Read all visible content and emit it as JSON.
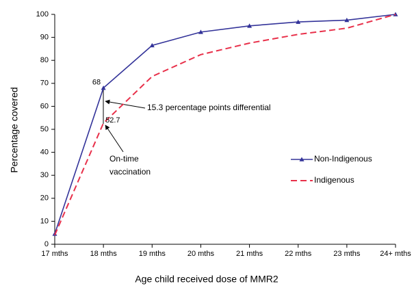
{
  "chart_data": {
    "type": "line",
    "x_label": "Age child received dose of MMR2",
    "y_label": "Percentage covered",
    "categories": [
      "17 mths",
      "18 mths",
      "19 mths",
      "20 mths",
      "21 mths",
      "22 mths",
      "23 mths",
      "24+ mths"
    ],
    "series": [
      {
        "name": "Non-Indigenous",
        "color": "#333399",
        "marker": "triangle",
        "dashed": false,
        "values": [
          4.5,
          68,
          86.5,
          92.3,
          95,
          96.7,
          97.5,
          100
        ]
      },
      {
        "name": "Indigenous",
        "color": "#e8304a",
        "marker": null,
        "dashed": true,
        "values": [
          4,
          52.7,
          73,
          82.5,
          87.5,
          91.3,
          94,
          100
        ]
      }
    ],
    "annotations": [
      {
        "text": "15.3 percentage points differential"
      },
      {
        "text": "On-time vaccination"
      }
    ],
    "ylim": [
      0,
      100
    ],
    "yticks": [
      0,
      10,
      20,
      30,
      40,
      50,
      60,
      70,
      80,
      90,
      100
    ],
    "grid": false,
    "legend": "right"
  }
}
